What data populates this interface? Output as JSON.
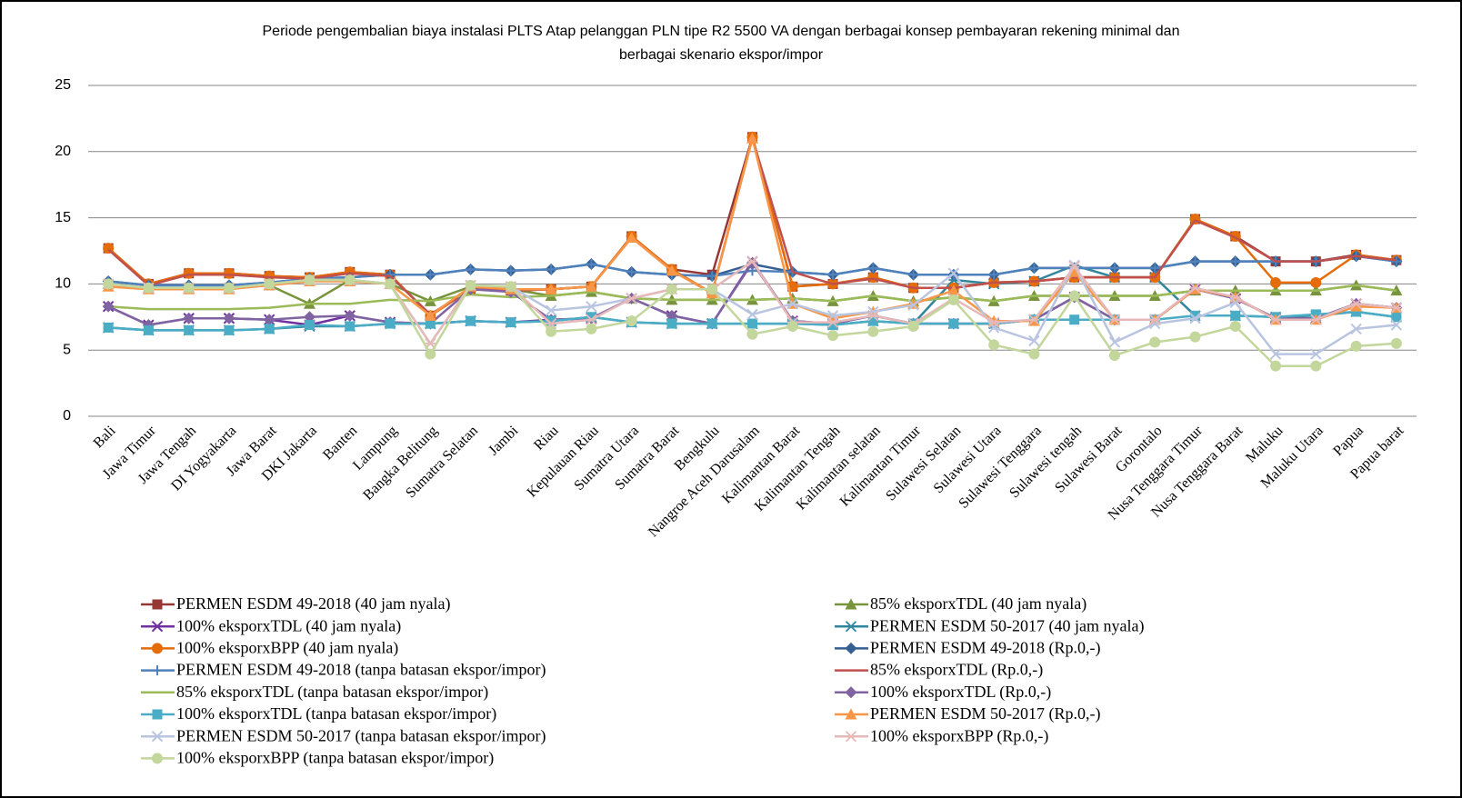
{
  "chart_data": {
    "type": "line",
    "title": [
      "Periode pengembalian biaya instalasi PLTS Atap pelanggan PLN  tipe R2 5500 VA dengan berbagai konsep pembayaran rekening minimal dan",
      "berbagai skenario ekspor/impor"
    ],
    "categories": [
      "Bali",
      "Jawa Timur",
      "Jawa Tengah",
      "DI Yogyakarta",
      "Jawa Barat",
      "DKI Jakarta",
      "Banten",
      "Lampung",
      "Bangka Belitung",
      "Sumatra Selatan",
      "Jambi",
      "Riau",
      "Kepulauan Riau",
      "Sumatra Utara",
      "Sumatra Barat",
      "Bengkulu",
      "Nangroe Aceh Darusalam",
      "Kalimantan Barat",
      "Kalimantan Tengah",
      "Kalimantan selatan",
      "Kalimantan Timur",
      "Sulawesi Selatan",
      "Sulawesi Utara",
      "Sulawesi Tenggara",
      "Sulawesi tengah",
      "Sulawesi Barat",
      "Gorontalo",
      "Nusa Tenggara Timur",
      "Nusa Tenggara Barat",
      "Maluku",
      "Maluku Utara",
      "Papua",
      "Papua barat"
    ],
    "ylim": [
      0,
      25
    ],
    "yticks": [
      0,
      5,
      10,
      15,
      20,
      25
    ],
    "grid": true,
    "series": [
      {
        "name": "PERMEN ESDM 49-2018 (40 jam nyala)",
        "color": "#953735",
        "marker": "square",
        "values": [
          12.7,
          10.0,
          10.8,
          10.8,
          10.6,
          10.5,
          10.9,
          10.7,
          7.6,
          9.6,
          9.5,
          9.6,
          9.8,
          13.6,
          11.1,
          10.7,
          21.1,
          9.8,
          10.0,
          10.5,
          9.7,
          9.7,
          10.1,
          10.2,
          10.5,
          10.5,
          10.5,
          14.9,
          13.6,
          11.7,
          11.7,
          12.2,
          11.8
        ]
      },
      {
        "name": "85% eksporxTDL (40 jam nyala)",
        "color": "#77933c",
        "marker": "triangle",
        "values": [
          10.0,
          9.7,
          9.7,
          9.7,
          9.9,
          8.5,
          10.3,
          10.0,
          8.7,
          9.8,
          9.6,
          9.1,
          9.4,
          8.9,
          8.8,
          8.8,
          8.8,
          8.9,
          8.7,
          9.1,
          8.7,
          9.0,
          8.7,
          9.1,
          9.1,
          9.1,
          9.1,
          9.5,
          9.5,
          9.5,
          9.5,
          9.9,
          9.5
        ]
      },
      {
        "name": "100% eksporxTDL (40 jam nyala)",
        "color": "#7030a0",
        "marker": "x",
        "values": [
          8.3,
          6.9,
          7.4,
          7.4,
          7.3,
          6.9,
          7.6,
          7.1,
          7.0,
          7.2,
          7.1,
          7.3,
          7.4,
          8.9,
          7.6,
          7.0,
          11.7,
          7.2,
          7.0,
          7.6,
          7.0,
          7.0,
          7.0,
          7.3,
          9.0,
          7.3,
          7.3,
          9.6,
          8.9,
          7.4,
          7.4,
          8.5,
          8.2
        ]
      },
      {
        "name": "PERMEN ESDM 50-2017 (40 jam nyala)",
        "color": "#31859c",
        "marker": "star",
        "values": [
          6.7,
          6.5,
          6.5,
          6.5,
          6.6,
          6.8,
          6.8,
          7.0,
          7.0,
          7.2,
          7.1,
          7.2,
          7.5,
          7.1,
          7.0,
          7.0,
          7.0,
          7.0,
          6.9,
          7.2,
          7.0,
          10.3,
          10.0,
          10.2,
          11.4,
          10.5,
          10.5,
          7.6,
          7.6,
          7.5,
          7.6,
          7.9,
          7.5
        ]
      },
      {
        "name": "100% eksporxBPP (40 jam nyala)",
        "color": "#e46c0a",
        "marker": "circle",
        "values": [
          12.7,
          10.0,
          10.8,
          10.8,
          10.6,
          10.5,
          10.9,
          10.7,
          7.6,
          9.6,
          9.5,
          9.6,
          9.8,
          13.6,
          11.1,
          9.3,
          21.1,
          9.8,
          10.0,
          10.5,
          9.7,
          9.7,
          10.1,
          10.2,
          10.5,
          10.5,
          10.5,
          14.9,
          13.6,
          10.1,
          10.1,
          12.2,
          11.8
        ]
      },
      {
        "name": "PERMEN ESDM 49-2018 (Rp.0,-)",
        "color": "#366092",
        "marker": "diamond",
        "values": [
          10.2,
          9.9,
          9.9,
          9.9,
          10.1,
          10.4,
          10.5,
          10.7,
          10.7,
          11.1,
          11.0,
          11.1,
          11.5,
          10.9,
          10.7,
          10.6,
          11.5,
          10.9,
          10.7,
          11.2,
          10.7,
          10.7,
          10.7,
          11.2,
          11.2,
          11.2,
          11.2,
          11.7,
          11.7,
          11.7,
          11.7,
          12.1,
          11.7
        ]
      },
      {
        "name": "PERMEN ESDM 49-2018 (tanpa batasan ekspor/impor)",
        "color": "#4f81bd",
        "marker": "plus",
        "values": [
          10.2,
          9.9,
          9.9,
          9.9,
          10.1,
          10.4,
          10.5,
          10.7,
          10.7,
          11.1,
          11.0,
          11.1,
          11.5,
          10.9,
          10.7,
          10.6,
          11.0,
          10.9,
          10.7,
          11.2,
          10.7,
          10.7,
          10.7,
          11.2,
          11.2,
          11.2,
          11.2,
          11.7,
          11.7,
          11.7,
          11.7,
          12.1,
          11.7
        ]
      },
      {
        "name": "85% eksporxTDL (Rp.0,-)",
        "color": "#c0504d",
        "marker": "none",
        "values": [
          12.6,
          9.9,
          10.7,
          10.7,
          10.5,
          10.4,
          10.8,
          10.6,
          7.7,
          9.6,
          9.5,
          9.6,
          9.8,
          13.5,
          11.0,
          9.3,
          21.0,
          10.9,
          10.0,
          10.4,
          9.7,
          9.7,
          10.1,
          10.2,
          10.5,
          10.5,
          10.5,
          14.8,
          13.5,
          11.7,
          11.7,
          12.1,
          11.8
        ]
      },
      {
        "name": "85% eksporxTDL (tanpa batasan ekspor/impor)",
        "color": "#9bbb59",
        "marker": "none",
        "values": [
          8.3,
          8.1,
          8.1,
          8.1,
          8.2,
          8.5,
          8.5,
          8.8,
          8.7,
          9.2,
          9.0,
          9.1,
          9.4,
          8.9,
          8.8,
          8.8,
          8.8,
          8.9,
          8.7,
          9.1,
          8.7,
          9.0,
          8.7,
          9.1,
          9.1,
          9.1,
          9.1,
          9.5,
          9.5,
          9.5,
          9.5,
          9.9,
          9.5
        ]
      },
      {
        "name": "100% eksporxTDL (Rp.0,-)",
        "color": "#8064a2",
        "marker": "diamond",
        "values": [
          8.3,
          6.9,
          7.4,
          7.4,
          7.3,
          7.5,
          7.6,
          7.1,
          7.0,
          9.6,
          9.4,
          7.3,
          7.4,
          8.9,
          7.6,
          7.0,
          11.6,
          7.2,
          7.0,
          7.6,
          7.0,
          7.0,
          7.0,
          7.3,
          9.0,
          7.3,
          7.3,
          9.6,
          8.9,
          7.4,
          7.4,
          8.5,
          8.2
        ]
      },
      {
        "name": "100% eksporxTDL (tanpa batasan ekspor/impor)",
        "color": "#4bacc6",
        "marker": "square",
        "values": [
          6.7,
          6.5,
          6.5,
          6.5,
          6.6,
          6.9,
          6.8,
          7.0,
          7.0,
          7.2,
          7.1,
          7.2,
          7.5,
          7.1,
          7.0,
          7.0,
          7.0,
          7.0,
          6.9,
          7.2,
          7.0,
          7.0,
          7.0,
          7.3,
          7.3,
          7.3,
          7.3,
          7.6,
          7.6,
          7.5,
          7.7,
          7.9,
          7.5
        ]
      },
      {
        "name": "PERMEN ESDM 50-2017 (Rp.0,-)",
        "color": "#f79646",
        "marker": "triangle",
        "values": [
          9.8,
          9.6,
          9.6,
          9.6,
          9.9,
          10.2,
          10.2,
          10.0,
          7.6,
          9.8,
          9.6,
          9.6,
          9.8,
          13.5,
          11.0,
          9.3,
          21.0,
          8.5,
          7.4,
          7.9,
          8.5,
          9.5,
          7.2,
          7.2,
          10.9,
          7.3,
          7.3,
          9.6,
          9.0,
          7.3,
          7.3,
          8.3,
          8.2
        ]
      },
      {
        "name": "PERMEN ESDM 50-2017 (tanpa batasan ekspor/impor)",
        "color": "#b9c5e0",
        "marker": "x",
        "values": [
          10.0,
          9.7,
          9.7,
          9.7,
          10.0,
          10.3,
          10.3,
          10.0,
          5.5,
          9.9,
          9.8,
          8.0,
          8.3,
          8.9,
          9.6,
          9.6,
          7.7,
          8.5,
          7.6,
          7.9,
          8.4,
          10.8,
          6.7,
          5.7,
          11.4,
          5.6,
          7.0,
          7.4,
          8.6,
          4.7,
          4.7,
          6.6,
          6.9
        ]
      },
      {
        "name": "100% eksporxBPP (Rp.0,-)",
        "color": "#e6b9b8",
        "marker": "star",
        "values": [
          10.0,
          9.7,
          9.7,
          9.7,
          10.0,
          10.3,
          10.3,
          10.0,
          5.5,
          9.9,
          9.8,
          7.0,
          7.3,
          8.9,
          9.6,
          9.6,
          11.7,
          7.1,
          7.1,
          7.6,
          7.0,
          8.9,
          7.1,
          7.3,
          11.3,
          7.3,
          7.3,
          9.7,
          9.0,
          7.3,
          7.3,
          8.5,
          8.2
        ]
      },
      {
        "name": "100% eksporxBPP (tanpa batasan ekspor/impor)",
        "color": "#c3d69b",
        "marker": "circle",
        "values": [
          10.0,
          9.7,
          9.7,
          9.7,
          10.0,
          10.3,
          10.3,
          10.0,
          4.7,
          9.9,
          9.8,
          6.4,
          6.6,
          7.2,
          9.6,
          9.6,
          6.2,
          6.8,
          6.1,
          6.4,
          6.8,
          8.8,
          5.4,
          4.7,
          9.1,
          4.6,
          5.6,
          6.0,
          6.8,
          3.8,
          3.8,
          5.3,
          5.5
        ]
      }
    ]
  }
}
